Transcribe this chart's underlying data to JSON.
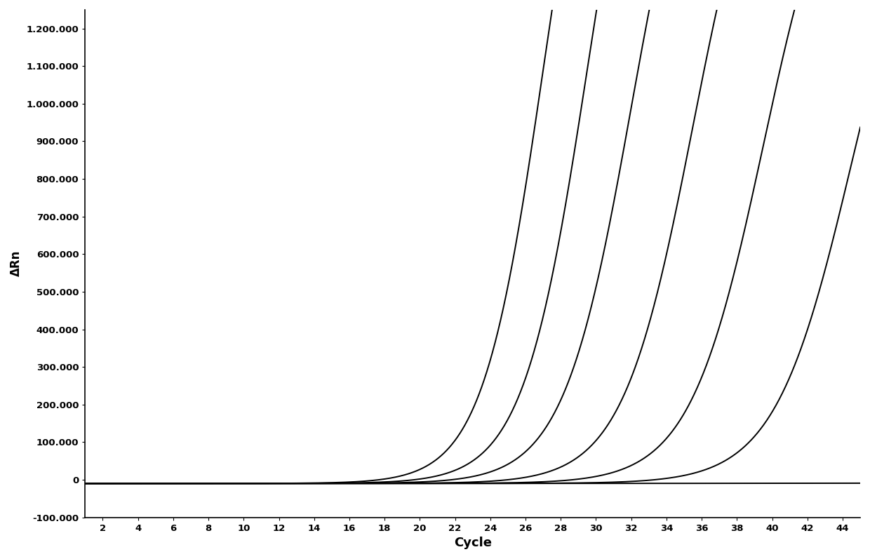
{
  "title": "",
  "xlabel": "Cycle",
  "ylabel": "ΔRn",
  "xlim": [
    1,
    45
  ],
  "ylim": [
    -100000,
    1250000
  ],
  "xticks": [
    2,
    4,
    6,
    8,
    10,
    12,
    14,
    16,
    18,
    20,
    22,
    24,
    26,
    28,
    30,
    32,
    34,
    36,
    38,
    40,
    42,
    44
  ],
  "yticks": [
    -100000,
    0,
    100000,
    200000,
    300000,
    400000,
    500000,
    600000,
    700000,
    800000,
    900000,
    1000000,
    1100000,
    1200000
  ],
  "background_color": "#ffffff",
  "line_color": "#000000",
  "curves": [
    {
      "midpoint": 27.0,
      "L": 2200000,
      "k": 0.58,
      "baseline": -10000
    },
    {
      "midpoint": 29.5,
      "L": 2200000,
      "k": 0.55,
      "baseline": -10000
    },
    {
      "midpoint": 32.0,
      "L": 2000000,
      "k": 0.52,
      "baseline": -10000
    },
    {
      "midpoint": 35.5,
      "L": 1900000,
      "k": 0.5,
      "baseline": -10000
    },
    {
      "midpoint": 39.5,
      "L": 1800000,
      "k": 0.48,
      "baseline": -10000
    },
    {
      "midpoint": 44.5,
      "L": 1700000,
      "k": 0.46,
      "baseline": -10000
    },
    {
      "midpoint": 80.0,
      "L": 50000,
      "k": 0.12,
      "baseline": -10000
    }
  ],
  "font_family": "Arial"
}
